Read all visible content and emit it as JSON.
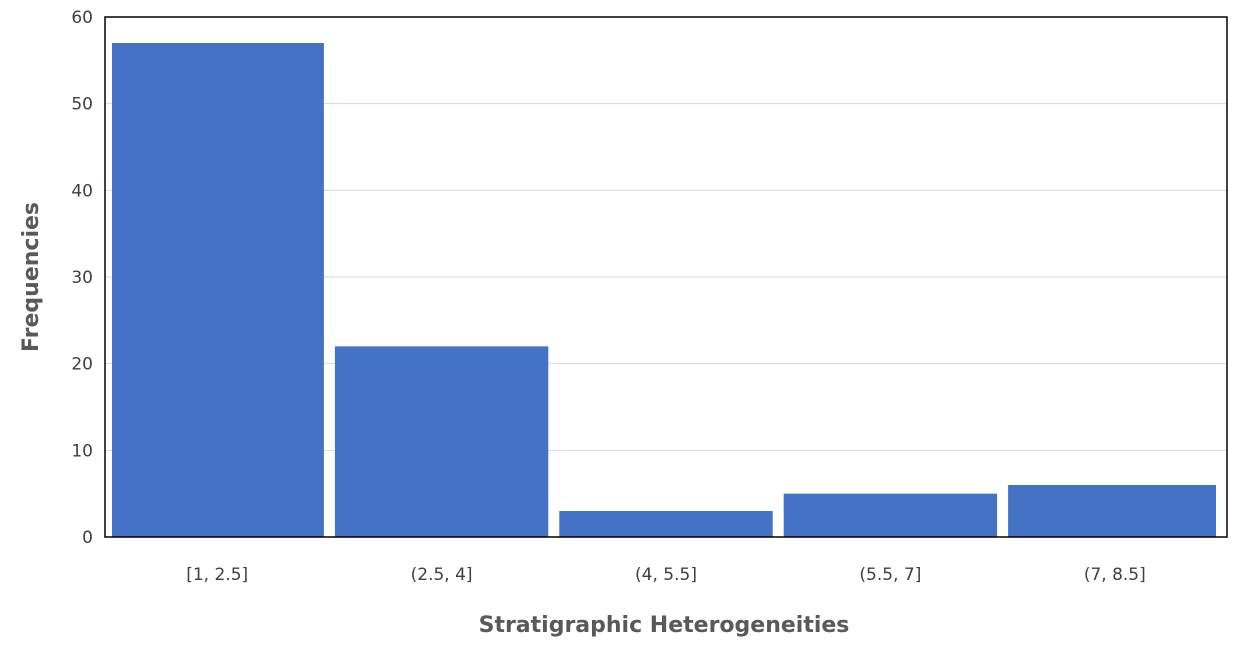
{
  "chart_data": {
    "type": "bar",
    "title": "",
    "xlabel": "Stratigraphic Heterogeneities",
    "ylabel": "Frequencies",
    "categories": [
      "[1, 2.5]",
      "(2.5, 4]",
      "(4, 5.5]",
      "(5.5, 7]",
      "(7, 8.5]"
    ],
    "values": [
      57,
      22,
      3,
      5,
      6
    ],
    "ylim": [
      0,
      60
    ],
    "yticks": [
      0,
      10,
      20,
      30,
      40,
      50,
      60
    ],
    "grid": true,
    "legend": "none",
    "colors": {
      "bar": "#4472C4",
      "grid": "#D9D9D9",
      "axis": "#000000"
    }
  }
}
